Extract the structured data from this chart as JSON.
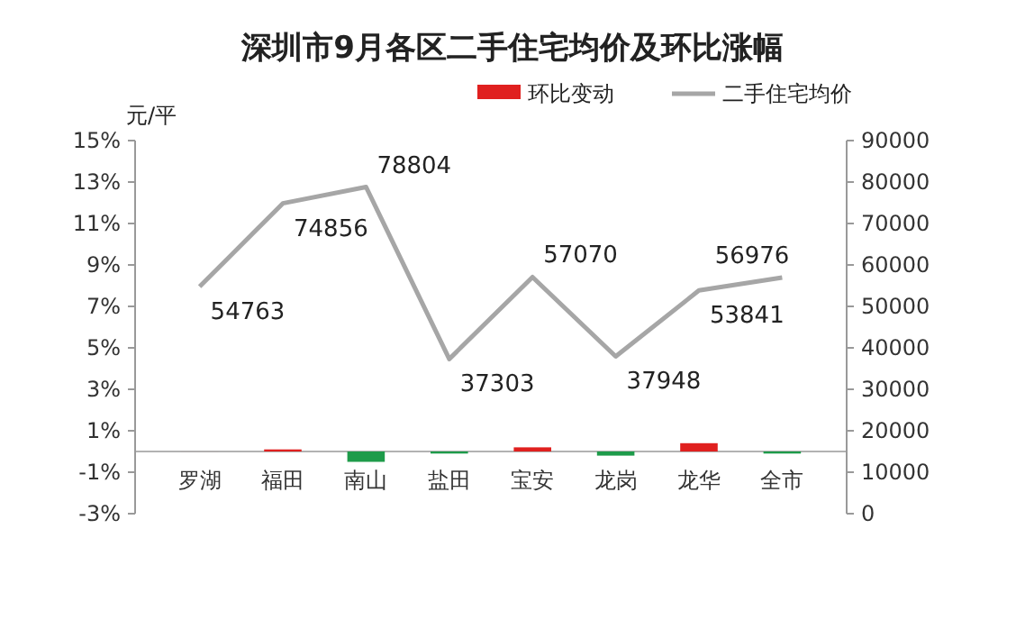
{
  "chart_data": {
    "type": "bar",
    "title": "深圳市9月各区二手住宅均价及环比涨幅",
    "ylabel": "元/平",
    "categories": [
      "罗湖",
      "福田",
      "南山",
      "盐田",
      "宝安",
      "龙岗",
      "龙华",
      "全市"
    ],
    "series": [
      {
        "name": "环比变动",
        "color": "#e0201f",
        "colors": [
          "#e0201f",
          "#e0201f",
          "#1e9b4a",
          "#1e9b4a",
          "#e0201f",
          "#1e9b4a",
          "#e0201f",
          "#1e9b4a"
        ],
        "values": [
          0,
          0.1,
          -0.5,
          -0.1,
          0.2,
          -0.2,
          0.4,
          -0.1
        ]
      },
      {
        "name": "二手住宅均价",
        "type": "line",
        "axis": "y2",
        "color": "#a6a6a6",
        "values": [
          54763,
          74856,
          78804,
          37303,
          57070,
          37948,
          53841,
          56976
        ],
        "value_labels": [
          "54763",
          "74856",
          "78804",
          "37303",
          "57070",
          "37948",
          "53841",
          "56976"
        ]
      }
    ],
    "ylim": [
      -3,
      15
    ],
    "yticks": [
      {
        "value": -3,
        "label": "-3%"
      },
      {
        "value": -1,
        "label": "-1%"
      },
      {
        "value": 1,
        "label": "1%"
      },
      {
        "value": 3,
        "label": "3%"
      },
      {
        "value": 5,
        "label": "5%"
      },
      {
        "value": 7,
        "label": "7%"
      },
      {
        "value": 9,
        "label": "9%"
      },
      {
        "value": 11,
        "label": "11%"
      },
      {
        "value": 13,
        "label": "13%"
      },
      {
        "value": 15,
        "label": "15%"
      }
    ],
    "y2lim": [
      0,
      90000
    ],
    "y2ticks": [
      0,
      10000,
      20000,
      30000,
      40000,
      50000,
      60000,
      70000,
      80000,
      90000
    ],
    "legend": "top right",
    "grid": false,
    "marker": "none"
  }
}
